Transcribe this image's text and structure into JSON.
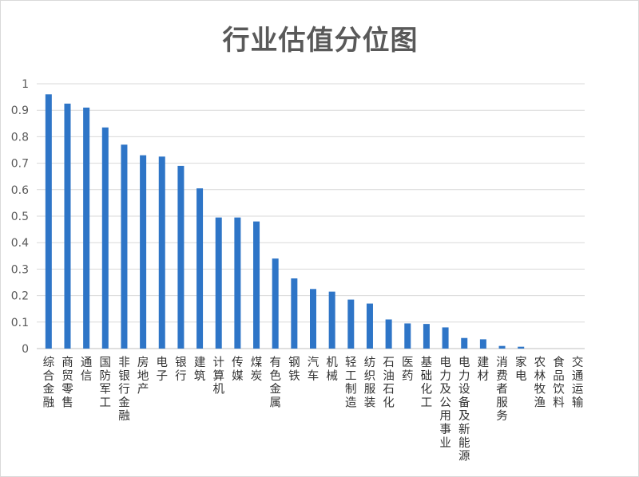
{
  "chart_data": {
    "type": "bar",
    "title": "行业估值分位图",
    "xlabel": "",
    "ylabel": "",
    "ylim": [
      0,
      1
    ],
    "yticks": [
      "0",
      "0.1",
      "0.2",
      "0.3",
      "0.4",
      "0.5",
      "0.6",
      "0.7",
      "0.8",
      "0.9",
      "1"
    ],
    "grid": true,
    "bar_color": "#2e75c7",
    "categories": [
      "综合金融",
      "商贸零售",
      "通信",
      "国防军工",
      "非银行金融",
      "房地产",
      "电子",
      "银行",
      "建筑",
      "计算机",
      "传媒",
      "煤炭",
      "有色金属",
      "钢铁",
      "汽车",
      "机械",
      "轻工制造",
      "纺织服装",
      "石油石化",
      "医药",
      "基础化工",
      "电力及公用事业",
      "电力设备及新能源",
      "建材",
      "消费者服务",
      "家电",
      "农林牧渔",
      "食品饮料",
      "交通运输"
    ],
    "values": [
      0.96,
      0.925,
      0.91,
      0.835,
      0.77,
      0.73,
      0.725,
      0.69,
      0.605,
      0.495,
      0.495,
      0.48,
      0.34,
      0.265,
      0.225,
      0.215,
      0.185,
      0.17,
      0.11,
      0.095,
      0.093,
      0.08,
      0.04,
      0.035,
      0.01,
      0.007,
      0,
      0,
      0
    ]
  }
}
